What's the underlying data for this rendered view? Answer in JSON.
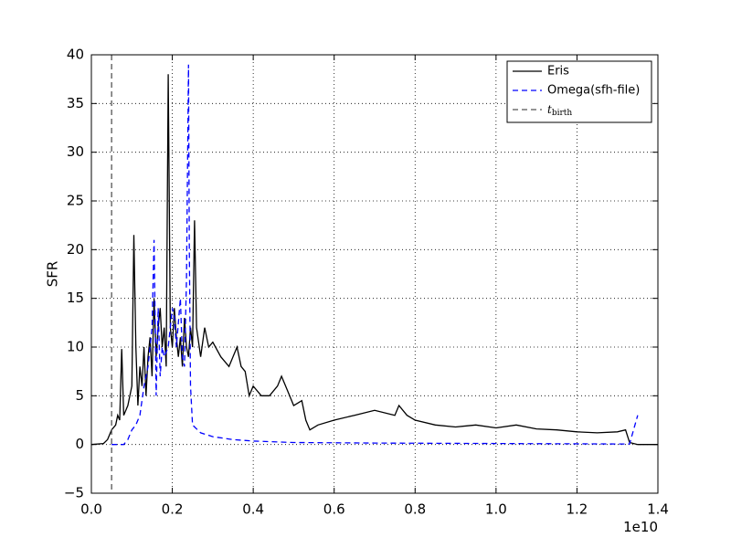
{
  "chart_data": {
    "type": "line",
    "ylabel": "SFR",
    "x_offset_label": "1e10",
    "xlim": [
      0,
      1.4
    ],
    "ylim": [
      -5,
      40
    ],
    "xticks": [
      {
        "value": 0,
        "label": "0.0"
      },
      0.2,
      0.4,
      0.6,
      0.8,
      {
        "value": 1,
        "label": "1.0"
      },
      1.2,
      1.4
    ],
    "yticks": [
      {
        "value": -5,
        "label": "−5"
      },
      0,
      5,
      10,
      15,
      20,
      25,
      30,
      35,
      40
    ],
    "grid": true,
    "legend": "upper right",
    "series": [
      {
        "name": "Eris",
        "color": "#000000",
        "dash": "solid",
        "x": [
          0.0,
          0.03,
          0.04,
          0.05,
          0.06,
          0.065,
          0.07,
          0.075,
          0.08,
          0.09,
          0.1,
          0.105,
          0.11,
          0.115,
          0.12,
          0.125,
          0.13,
          0.135,
          0.14,
          0.145,
          0.15,
          0.155,
          0.16,
          0.165,
          0.17,
          0.175,
          0.18,
          0.185,
          0.19,
          0.195,
          0.2,
          0.205,
          0.21,
          0.215,
          0.22,
          0.225,
          0.23,
          0.235,
          0.24,
          0.245,
          0.25,
          0.255,
          0.26,
          0.27,
          0.28,
          0.29,
          0.3,
          0.32,
          0.34,
          0.36,
          0.37,
          0.38,
          0.39,
          0.4,
          0.42,
          0.44,
          0.46,
          0.47,
          0.48,
          0.5,
          0.52,
          0.53,
          0.54,
          0.56,
          0.6,
          0.65,
          0.7,
          0.75,
          0.76,
          0.78,
          0.8,
          0.85,
          0.9,
          0.95,
          1.0,
          1.05,
          1.1,
          1.15,
          1.2,
          1.25,
          1.3,
          1.32,
          1.33,
          1.35,
          1.4
        ],
        "values": [
          0,
          0.1,
          0.5,
          1.5,
          2,
          3,
          2.5,
          9.8,
          3,
          4,
          6,
          21.5,
          10,
          4,
          8,
          6,
          10,
          5,
          9,
          11,
          7,
          15,
          9,
          12,
          14,
          10,
          12,
          8,
          38,
          12,
          10,
          14,
          11,
          9,
          11,
          8,
          13,
          10,
          9,
          12,
          10,
          23,
          12,
          9,
          12,
          10,
          10.5,
          9,
          8,
          10,
          8,
          7.5,
          5,
          6,
          5,
          5,
          6,
          7,
          6,
          4,
          4.5,
          2.5,
          1.5,
          2,
          2.5,
          3,
          3.5,
          3,
          4,
          3,
          2.5,
          2,
          1.8,
          2,
          1.7,
          2,
          1.6,
          1.5,
          1.3,
          1.2,
          1.3,
          1.5,
          0.2,
          0,
          0
        ]
      },
      {
        "name": "Omega(sfh-file)",
        "color": "#0000ff",
        "dash": "dashed",
        "x": [
          0.05,
          0.08,
          0.09,
          0.1,
          0.11,
          0.12,
          0.13,
          0.14,
          0.15,
          0.155,
          0.16,
          0.165,
          0.17,
          0.175,
          0.18,
          0.19,
          0.2,
          0.205,
          0.21,
          0.22,
          0.225,
          0.23,
          0.235,
          0.24,
          0.242,
          0.245,
          0.25,
          0.27,
          0.3,
          0.35,
          0.4,
          0.5,
          0.7,
          1.0,
          1.3,
          1.33,
          1.35
        ],
        "values": [
          0,
          0,
          0.5,
          1.5,
          2,
          3,
          6,
          8,
          12,
          21,
          5,
          14,
          7,
          10,
          9,
          10,
          14,
          13,
          10,
          15,
          9,
          8,
          17,
          39,
          20,
          6,
          2,
          1.2,
          0.8,
          0.5,
          0.35,
          0.2,
          0.15,
          0.1,
          0.05,
          0.05,
          3
        ]
      }
    ],
    "vline": {
      "x": 0.05,
      "color": "#555555",
      "name": "t",
      "subscript": "birth"
    }
  }
}
